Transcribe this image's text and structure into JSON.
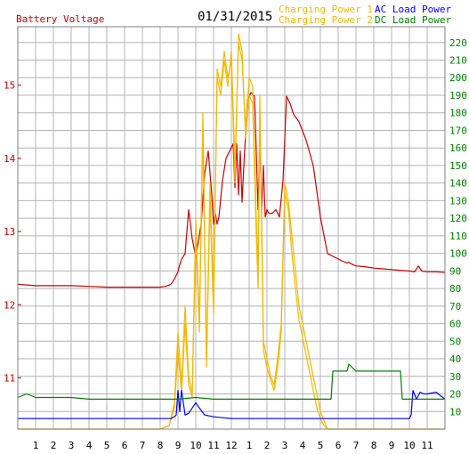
{
  "header": {
    "left_title": "Battery Voltage",
    "date": "01/31/2015",
    "legend": [
      {
        "label": "Charging Power 1",
        "color": "#f5b800"
      },
      {
        "label": "Charging Power 2",
        "color": "#f5b800"
      },
      {
        "label": "AC Load Power",
        "color": "#0000ff"
      },
      {
        "label": "DC Load Power",
        "color": "#008000"
      }
    ]
  },
  "chart_data": {
    "type": "line",
    "x_tick_labels": [
      "1",
      "2",
      "3",
      "4",
      "5",
      "6",
      "7",
      "8",
      "9",
      "10",
      "11",
      "12",
      "1",
      "2",
      "3",
      "4",
      "5",
      "6",
      "7",
      "8",
      "9",
      "10",
      "11"
    ],
    "xlim": [
      0,
      24
    ],
    "y_left": {
      "label": "Battery Voltage",
      "ticks": [
        11,
        12,
        13,
        14,
        15
      ],
      "ylim": [
        10.3,
        15.8
      ],
      "color": "#cc0000"
    },
    "y_right": {
      "ticks": [
        10,
        20,
        30,
        40,
        50,
        60,
        70,
        80,
        90,
        100,
        110,
        120,
        130,
        140,
        150,
        160,
        170,
        180,
        190,
        200,
        210,
        220
      ],
      "ylim": [
        0,
        229
      ],
      "color": "#008000"
    },
    "grid": true,
    "series": [
      {
        "name": "Battery Voltage",
        "axis": "left",
        "color": "#cc0000",
        "x": [
          0,
          0.5,
          1,
          2,
          3,
          4,
          5,
          6,
          7,
          8,
          8.3,
          8.6,
          8.8,
          9.0,
          9.1,
          9.2,
          9.4,
          9.6,
          9.8,
          10.0,
          10.1,
          10.3,
          10.5,
          10.7,
          10.9,
          11.0,
          11.1,
          11.2,
          11.3,
          11.5,
          11.7,
          11.9,
          12.1,
          12.2,
          12.3,
          12.4,
          12.5,
          12.6,
          12.7,
          12.9,
          13.1,
          13.3,
          13.5,
          13.6,
          13.7,
          13.8,
          13.9,
          14.0,
          14.1,
          14.3,
          14.5,
          14.7,
          14.9,
          15.1,
          15.2,
          15.3,
          15.5,
          15.8,
          16.2,
          16.6,
          17.0,
          17.4,
          17.8,
          18.2,
          18.5,
          18.6,
          18.8,
          19,
          19.5,
          20,
          20.5,
          21,
          21.5,
          22,
          22.3,
          22.5,
          22.7,
          23,
          23.5,
          24
        ],
        "y": [
          12.28,
          12.27,
          12.26,
          12.26,
          12.26,
          12.25,
          12.24,
          12.24,
          12.24,
          12.24,
          12.25,
          12.28,
          12.35,
          12.45,
          12.55,
          12.62,
          12.7,
          13.3,
          12.9,
          12.65,
          12.8,
          13.1,
          13.8,
          14.1,
          13.5,
          13.1,
          13.25,
          13.1,
          13.2,
          13.7,
          14.0,
          14.1,
          14.2,
          13.6,
          14.2,
          13.5,
          14.1,
          13.4,
          13.9,
          14.8,
          14.9,
          14.85,
          13.3,
          14.3,
          13.3,
          13.9,
          13.2,
          13.3,
          13.25,
          13.25,
          13.3,
          13.2,
          13.7,
          14.85,
          14.8,
          14.75,
          14.6,
          14.5,
          14.25,
          13.9,
          13.2,
          12.7,
          12.65,
          12.6,
          12.57,
          12.58,
          12.55,
          12.53,
          12.52,
          12.5,
          12.49,
          12.48,
          12.47,
          12.46,
          12.45,
          12.53,
          12.46,
          12.45,
          12.45,
          12.44
        ]
      },
      {
        "name": "Charging Power 1",
        "axis": "right",
        "color": "#f5b800",
        "x": [
          0,
          7,
          8,
          8.5,
          8.8,
          9.0,
          9.2,
          9.4,
          9.6,
          9.8,
          10.0,
          10.2,
          10.4,
          10.6,
          10.8,
          11.0,
          11.2,
          11.4,
          11.6,
          11.8,
          12.0,
          12.2,
          12.4,
          12.6,
          12.8,
          13.0,
          13.2,
          13.4,
          13.5,
          13.6,
          13.8,
          14.0,
          14.2,
          14.4,
          14.6,
          14.8,
          15.0,
          15.2,
          15.4,
          15.6,
          15.8,
          16.0,
          16.2,
          16.4,
          16.6,
          16.8,
          17.0,
          17.2,
          17.4,
          17.6,
          18,
          24
        ],
        "y": [
          0,
          0,
          0,
          2,
          15,
          55,
          25,
          70,
          30,
          20,
          120,
          60,
          180,
          40,
          140,
          70,
          200,
          190,
          210,
          195,
          215,
          150,
          220,
          210,
          170,
          200,
          195,
          120,
          90,
          190,
          50,
          40,
          30,
          25,
          40,
          60,
          140,
          130,
          110,
          90,
          70,
          60,
          50,
          40,
          30,
          20,
          10,
          5,
          0,
          0,
          0,
          0
        ]
      },
      {
        "name": "Charging Power 2",
        "axis": "right",
        "color": "#f5b800",
        "x": [
          0,
          7,
          8,
          8.5,
          8.8,
          9.0,
          9.2,
          9.4,
          9.6,
          9.8,
          10.0,
          10.2,
          10.4,
          10.6,
          10.8,
          11.0,
          11.2,
          11.4,
          11.6,
          11.8,
          12.0,
          12.2,
          12.4,
          12.6,
          12.8,
          13.0,
          13.2,
          13.4,
          13.5,
          13.6,
          13.8,
          14.0,
          14.2,
          14.4,
          14.6,
          14.8,
          15.0,
          15.2,
          15.4,
          15.6,
          15.8,
          16.0,
          16.2,
          16.4,
          16.6,
          16.8,
          17.0,
          17.2,
          17.4,
          17.6,
          18,
          24
        ],
        "y": [
          0,
          0,
          0,
          2,
          12,
          45,
          20,
          60,
          25,
          18,
          110,
          55,
          170,
          35,
          130,
          65,
          205,
          195,
          215,
          200,
          210,
          140,
          225,
          215,
          165,
          190,
          185,
          110,
          80,
          180,
          45,
          35,
          28,
          22,
          35,
          55,
          135,
          125,
          100,
          80,
          62,
          52,
          42,
          32,
          22,
          12,
          6,
          2,
          0,
          0,
          0,
          0
        ]
      },
      {
        "name": "AC Load Power",
        "axis": "right",
        "color": "#0000ff",
        "x": [
          0,
          1,
          2,
          3,
          4,
          5,
          6,
          7,
          8,
          8.3,
          8.5,
          8.6,
          8.8,
          8.9,
          9.0,
          9.1,
          9.2,
          9.4,
          9.6,
          9.8,
          10.0,
          10.2,
          10.5,
          11,
          12,
          13,
          14,
          15,
          16,
          17,
          18,
          19,
          20,
          21,
          21.8,
          22,
          22.1,
          22.2,
          22.4,
          22.6,
          22.8,
          23,
          23.5,
          24
        ],
        "y": [
          6,
          6,
          6,
          6,
          6,
          6,
          6,
          6,
          6,
          6,
          6,
          6,
          7,
          8,
          22,
          10,
          22,
          8,
          9,
          12,
          15,
          12,
          8,
          7,
          6,
          6,
          6,
          6,
          6,
          6,
          6,
          6,
          6,
          6,
          6,
          6,
          8,
          22,
          17,
          21,
          20,
          20,
          21,
          17
        ]
      },
      {
        "name": "DC Load Power",
        "axis": "right",
        "color": "#008000",
        "x": [
          0,
          0.5,
          1,
          2,
          3,
          4,
          5,
          6,
          7,
          8,
          8.5,
          9,
          10,
          11,
          12,
          13,
          14,
          15,
          16,
          17,
          17.6,
          17.7,
          18,
          18.5,
          18.6,
          19,
          20,
          21,
          21.5,
          21.6,
          22,
          24
        ],
        "y": [
          18,
          20,
          18,
          18,
          18,
          17,
          17,
          17,
          17,
          17,
          17,
          17,
          18,
          17,
          17,
          17,
          17,
          17,
          17,
          17,
          17,
          33,
          33,
          33,
          37,
          33,
          33,
          33,
          33,
          17,
          17,
          17
        ]
      }
    ]
  }
}
